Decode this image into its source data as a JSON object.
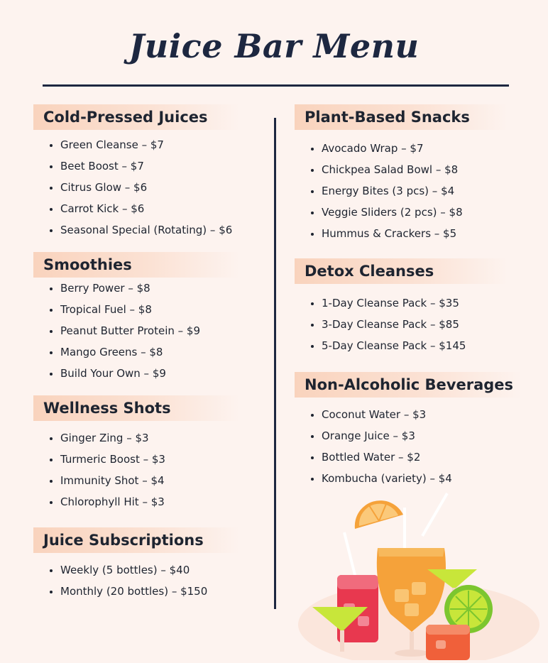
{
  "title": "Juice Bar Menu",
  "left_column": [
    {
      "heading": "Cold-Pressed Juices",
      "items": [
        "Green Cleanse – $7",
        "Beet Boost – $7",
        "Citrus Glow – $6",
        "Carrot Kick – $6",
        "Seasonal Special (Rotating) – $6"
      ]
    },
    {
      "heading": "Smoothies",
      "items": [
        "Berry Power – $8",
        "Tropical Fuel – $8",
        "Peanut Butter Protein – $9",
        "Mango Greens – $8",
        "Build Your Own – $9"
      ]
    },
    {
      "heading": "Wellness Shots",
      "items": [
        "Ginger Zing – $3",
        "Turmeric Boost – $3",
        "Immunity Shot – $4",
        "Chlorophyll Hit – $3"
      ]
    },
    {
      "heading": "Juice Subscriptions",
      "items": [
        "Weekly (5 bottles) – $40",
        "Monthly (20 bottles) – $150"
      ]
    }
  ],
  "right_column": [
    {
      "heading": "Plant-Based Snacks",
      "items": [
        "Avocado Wrap – $7",
        "Chickpea Salad Bowl – $8",
        "Energy Bites (3 pcs) – $4",
        "Veggie Sliders (2 pcs) – $8",
        "Hummus & Crackers – $5"
      ]
    },
    {
      "heading": "Detox Cleanses",
      "items": [
        "1-Day Cleanse Pack – $35",
        "3-Day Cleanse Pack – $85",
        "5-Day Cleanse Pack – $145"
      ]
    },
    {
      "heading": "Non-Alcoholic Beverages",
      "items": [
        "Coconut Water – $3",
        "Orange Juice – $3",
        "Bottled Water – $2",
        "Kombucha (variety) – $4"
      ]
    }
  ],
  "colors": {
    "background": "#fdf3ef",
    "heading_band": "#f9d3bd",
    "text": "#1e2430",
    "orange_drink": "#f5a23a",
    "red_drink": "#e8384f",
    "lime": "#c8e63a"
  },
  "decorations": [
    "cocktail-drinks-illustration"
  ]
}
